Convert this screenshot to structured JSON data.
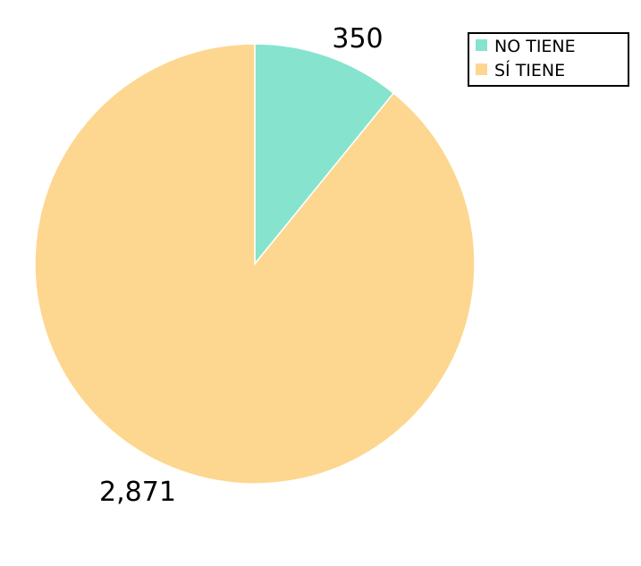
{
  "chart_data": {
    "type": "pie",
    "categories": [
      "NO TIENE",
      "SÍ TIENE"
    ],
    "values": [
      350,
      2871
    ],
    "data_labels": [
      "350",
      "2,871"
    ],
    "colors": [
      "#86e3ce",
      "#fdd78f"
    ],
    "start_angle": "top (12 o'clock)",
    "direction": "clockwise",
    "legend": {
      "placement": "top-right",
      "entries": [
        "NO TIENE",
        "SÍ TIENE"
      ]
    }
  }
}
